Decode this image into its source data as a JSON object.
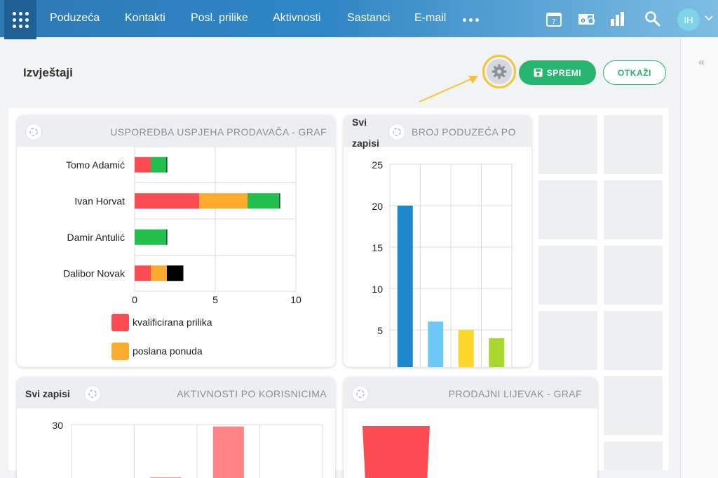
{
  "nav": {
    "items": [
      "Poduzeća",
      "Kontakti",
      "Posl. prilike",
      "Aktivnosti",
      "Sastanci",
      "E-mail"
    ],
    "calendar_day": "7",
    "avatar_initials": "IH"
  },
  "page": {
    "title": "Izvještaji",
    "save_label": "SPREMI",
    "cancel_label": "OTKAŽI"
  },
  "widgets": {
    "w1": {
      "title": "USPOREDBA USPJEHA PRODAVAČA - GRAF"
    },
    "w2": {
      "title": "BROJ PODUZEĆA PO",
      "filter_line1": "Svi",
      "filter_line2": "zapisi"
    },
    "w3": {
      "title": "AKTIVNOSTI PO KORISNICIMA",
      "filter": "Svi zapisi"
    },
    "w4": {
      "title": "PRODAJNI LIJEVAK - GRAF"
    }
  },
  "colors": {
    "accent": "#27b570",
    "nav_dark": "#1f5f94",
    "highlight": "#f6c338"
  },
  "chart_data": [
    {
      "type": "bar",
      "orientation": "horizontal",
      "stacked": true,
      "title": "USPOREDBA USPJEHA PRODAVAČA - GRAF",
      "categories": [
        "Tomo Adamić",
        "Ivan Horvat",
        "Damir Antulić",
        "Dalibor Novak"
      ],
      "series": [
        {
          "name": "kvalificirana prilika",
          "color": "#fb4b53",
          "values": [
            1,
            4,
            0,
            1
          ]
        },
        {
          "name": "poslana ponuda",
          "color": "#fbac2f",
          "values": [
            0,
            3,
            0,
            1
          ]
        },
        {
          "color": "#22be4e",
          "values": [
            1,
            2,
            2,
            0
          ]
        },
        {
          "color": "#000000",
          "values": [
            0,
            0,
            0,
            1
          ]
        }
      ],
      "xticks": [
        "0",
        "5",
        "10"
      ],
      "xlim": [
        0,
        10
      ],
      "legend": [
        "kvalificirana prilika",
        "poslana ponuda"
      ]
    },
    {
      "type": "bar",
      "title": "BROJ PODUZEĆA PO",
      "values": [
        20,
        6,
        5,
        4
      ],
      "colors": [
        "#1c88cc",
        "#6cc9f6",
        "#fbd72b",
        "#a8d82e"
      ],
      "yticks": [
        "5",
        "10",
        "15",
        "20",
        "25"
      ],
      "ylim": [
        0,
        25
      ]
    },
    {
      "type": "bar",
      "title": "AKTIVNOSTI PO KORISNICIMA",
      "values": [
        1,
        29
      ],
      "colors": [
        "#fb4b53",
        "#ff8286"
      ],
      "yticks": [
        "30"
      ]
    },
    {
      "type": "bar",
      "title": "PRODAJNI LIJEVAK - GRAF",
      "colors": [
        "#fb4b53"
      ]
    }
  ]
}
